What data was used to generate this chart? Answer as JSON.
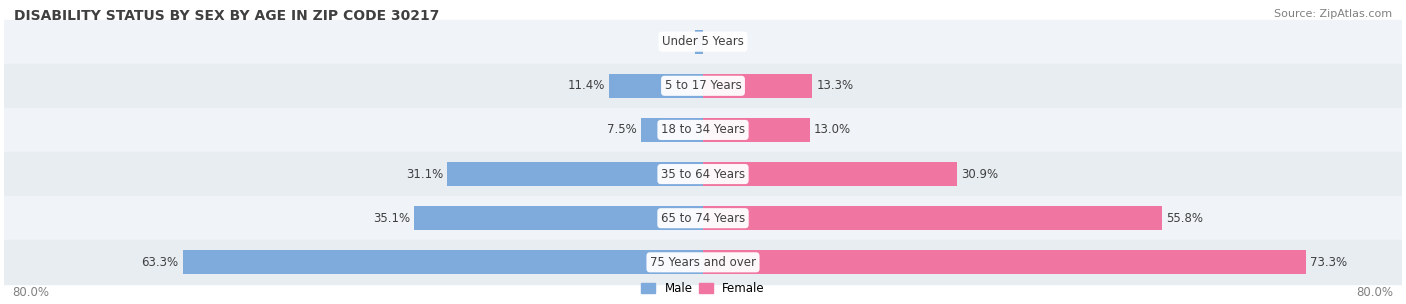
{
  "title": "DISABILITY STATUS BY SEX BY AGE IN ZIP CODE 30217",
  "source": "Source: ZipAtlas.com",
  "categories": [
    "Under 5 Years",
    "5 to 17 Years",
    "18 to 34 Years",
    "35 to 64 Years",
    "65 to 74 Years",
    "75 Years and over"
  ],
  "male_values": [
    1.0,
    11.4,
    7.5,
    31.1,
    35.1,
    63.3
  ],
  "female_values": [
    0.0,
    13.3,
    13.0,
    30.9,
    55.8,
    73.3
  ],
  "male_color": "#7faadc",
  "female_color": "#f075a0",
  "bar_bg_color": "#e8e8e8",
  "row_bg_colors": [
    "#f0f0f0",
    "#e8e8e8"
  ],
  "xlim": 80.0,
  "bar_height": 0.55,
  "label_fontsize": 8.5,
  "title_fontsize": 10,
  "source_fontsize": 8,
  "legend_male": "Male",
  "legend_female": "Female",
  "title_color": "#404040",
  "label_color": "#404040",
  "axis_label_color": "#808080"
}
